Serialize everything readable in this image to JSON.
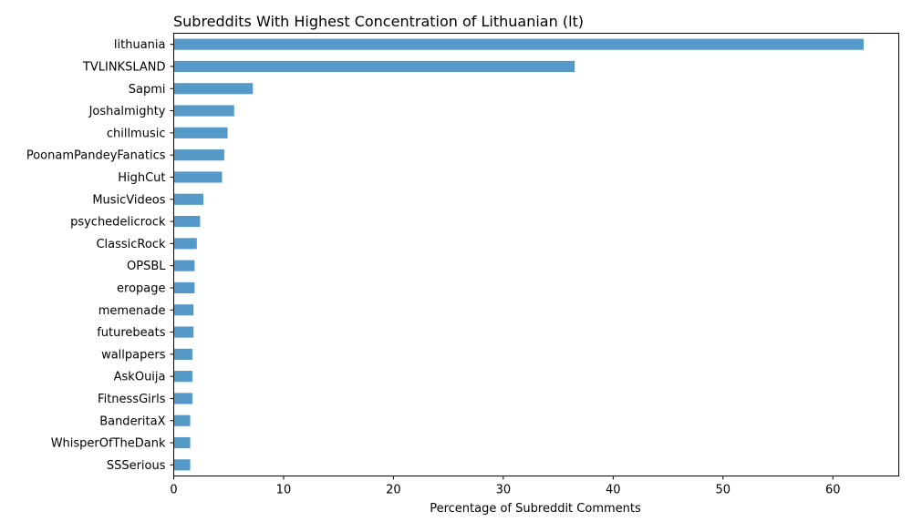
{
  "chart_data": {
    "type": "bar",
    "orientation": "horizontal",
    "title": "Subreddits With Highest Concentration of Lithuanian (lt)",
    "xlabel": "Percentage of Subreddit Comments",
    "ylabel": "",
    "xlim": [
      0,
      66
    ],
    "xticks": [
      0,
      10,
      20,
      30,
      40,
      50,
      60
    ],
    "grid": false,
    "bar_color": "#5599c9",
    "categories": [
      "lithuania",
      "TVLINKSLAND",
      "Sapmi",
      "Joshalmighty",
      "chillmusic",
      "PoonamPandeyFanatics",
      "HighCut",
      "MusicVideos",
      "psychedelicrock",
      "ClassicRock",
      "OPSBL",
      "eropage",
      "memenade",
      "futurebeats",
      "wallpapers",
      "AskOuija",
      "FitnessGirls",
      "BanderitaX",
      "WhisperOfTheDank",
      "SSSerious"
    ],
    "values": [
      62.8,
      36.5,
      7.2,
      5.5,
      4.9,
      4.6,
      4.4,
      2.7,
      2.4,
      2.1,
      1.9,
      1.9,
      1.8,
      1.8,
      1.7,
      1.7,
      1.7,
      1.5,
      1.5,
      1.5
    ]
  }
}
